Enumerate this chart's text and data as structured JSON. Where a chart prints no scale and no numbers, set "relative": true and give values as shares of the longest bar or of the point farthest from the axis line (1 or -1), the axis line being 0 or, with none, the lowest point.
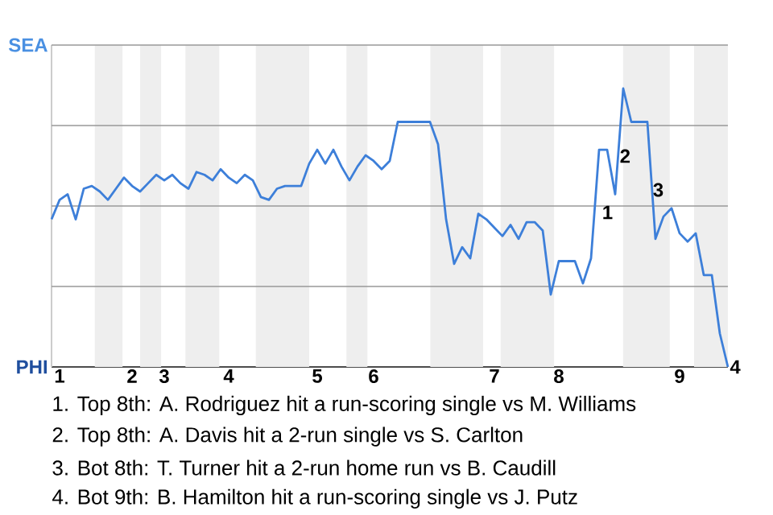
{
  "chart_data": {
    "type": "line",
    "relative": true,
    "categories": [
      null,
      "1",
      null,
      null,
      null,
      null,
      null,
      null,
      null,
      null,
      "2",
      null,
      null,
      null,
      "3",
      null,
      null,
      null,
      null,
      null,
      null,
      null,
      "4",
      null,
      null,
      null,
      null,
      null,
      null,
      null,
      null,
      null,
      null,
      "5",
      null,
      null,
      null,
      null,
      null,
      null,
      "6",
      null,
      null,
      null,
      null,
      null,
      null,
      null,
      null,
      null,
      null,
      null,
      null,
      null,
      null,
      "7",
      null,
      null,
      null,
      null,
      null,
      null,
      null,
      "8",
      null,
      null,
      null,
      null,
      null,
      null,
      null,
      null,
      null,
      null,
      null,
      null,
      null,
      null,
      "9",
      null,
      null,
      null,
      null,
      null,
      null
    ],
    "grid": "y",
    "series": [
      {
        "color": "#3d7fd9",
        "values": [
          0.53,
          0.6,
          0.62,
          0.53,
          0.64,
          0.65,
          0.63,
          0.6,
          0.64,
          0.68,
          0.65,
          0.63,
          0.66,
          0.69,
          0.67,
          0.69,
          0.66,
          0.64,
          0.7,
          0.69,
          0.67,
          0.71,
          0.68,
          0.66,
          0.69,
          0.67,
          0.61,
          0.6,
          0.64,
          0.65,
          0.65,
          0.65,
          0.73,
          0.78,
          0.73,
          0.78,
          0.72,
          0.67,
          0.72,
          0.76,
          0.74,
          0.71,
          0.74,
          0.88,
          0.88,
          0.88,
          0.88,
          0.88,
          0.8,
          0.53,
          0.37,
          0.43,
          0.39,
          0.55,
          0.53,
          0.5,
          0.47,
          0.51,
          0.46,
          0.52,
          0.52,
          0.49,
          0.26,
          0.38,
          0.38,
          0.38,
          0.3,
          0.39,
          0.78,
          0.78,
          0.62,
          1,
          0.88,
          0.88,
          0.88,
          0.46,
          0.54,
          0.57,
          0.48,
          0.45,
          0.48,
          0.33,
          0.33,
          0.12,
          0
        ]
      }
    ],
    "annotations": [
      "SEA",
      "PHI",
      "1",
      "2",
      "3",
      "4",
      "1. Top 8th: A. Rodriguez hit a run-scoring single vs M. Williams",
      "2. Top 8th: A. Davis hit a 2-run single vs S. Carlton",
      "3. Bot 8th: T. Turner hit a 2-run home run vs B. Caudill",
      "4. Bot 9th: B. Hamilton hit a run-scoring single vs J. Putz"
    ]
  }
}
